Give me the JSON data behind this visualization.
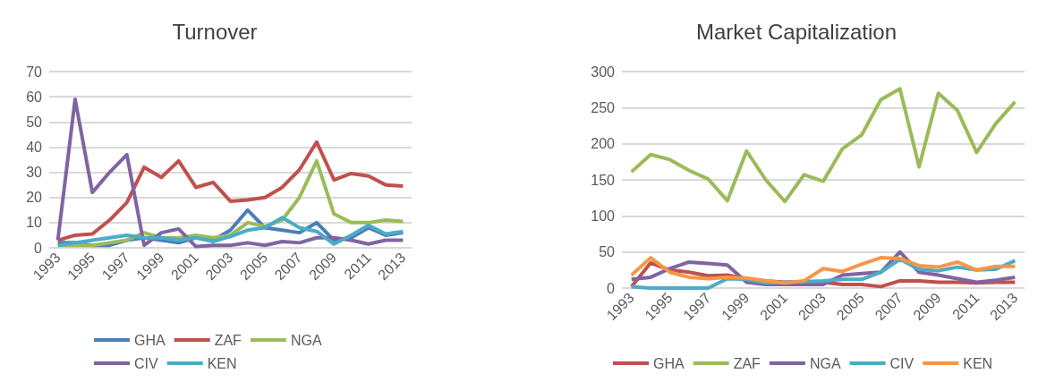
{
  "chart_data": [
    {
      "type": "line",
      "title": "Turnover",
      "categories": [
        "1993",
        null,
        "1995",
        null,
        "1997",
        null,
        "1999",
        null,
        "2001",
        null,
        "2003",
        null,
        "2005",
        null,
        "2007",
        null,
        "2009",
        null,
        "2011",
        null,
        "2013"
      ],
      "ylim": [
        0,
        70
      ],
      "yticks": [
        0,
        10,
        20,
        30,
        40,
        50,
        60,
        70
      ],
      "grid": "y",
      "legend": "bottom",
      "marker": "none",
      "series": [
        {
          "name": "GHA",
          "color": "#4a7ebb",
          "values": [
            2,
            2,
            1,
            1,
            3,
            4,
            3,
            2,
            4,
            3,
            7,
            15,
            8,
            7,
            6,
            10,
            3,
            4,
            8,
            5,
            6
          ]
        },
        {
          "name": "ZAF",
          "color": "#c0504d",
          "values": [
            3,
            5,
            5.5,
            11,
            18,
            32,
            28,
            34.5,
            24,
            26,
            18.5,
            19,
            20,
            24,
            31,
            42,
            27,
            29.5,
            28.5,
            25,
            24.5
          ]
        },
        {
          "name": "NGA",
          "color": "#9bbb59",
          "values": [
            1,
            1,
            1,
            2,
            3,
            6,
            4,
            4,
            5,
            4,
            5,
            10,
            8.5,
            11,
            20,
            34.5,
            13.5,
            10,
            10,
            11,
            10.5
          ]
        },
        {
          "name": "CIV",
          "color": "#8064a2",
          "values": [
            3,
            59,
            22,
            30,
            37,
            1,
            6,
            7.5,
            0.5,
            1,
            1,
            2,
            1,
            2.5,
            2,
            4,
            4,
            3,
            1.5,
            3,
            3
          ]
        },
        {
          "name": "KEN",
          "color": "#4bacc6",
          "values": [
            1,
            2,
            3,
            4,
            5,
            4,
            4,
            3,
            4,
            2.5,
            4.5,
            7,
            8,
            12,
            8,
            6.5,
            1.5,
            5,
            9,
            5.5,
            6.5
          ]
        }
      ]
    },
    {
      "type": "line",
      "title": "Market Capitalization",
      "categories": [
        "1993",
        null,
        "1995",
        null,
        "1997",
        null,
        "1999",
        null,
        "2001",
        null,
        "2003",
        null,
        "2005",
        null,
        "2007",
        null,
        "2009",
        null,
        "2011",
        null,
        "2013"
      ],
      "ylim": [
        0,
        300
      ],
      "yticks": [
        0,
        50,
        100,
        150,
        200,
        250,
        300
      ],
      "grid": "y",
      "legend": "bottom",
      "marker": "none",
      "series": [
        {
          "name": "GHA",
          "color": "#c0504d",
          "values": [
            2,
            35,
            25,
            22,
            17,
            18,
            13,
            10,
            8,
            8,
            8,
            5,
            5,
            2,
            10,
            10,
            8,
            8,
            7,
            8,
            8
          ]
        },
        {
          "name": "ZAF",
          "color": "#9bbb59",
          "values": [
            161,
            185,
            178,
            163,
            151,
            121,
            190,
            150,
            120,
            157,
            148,
            193,
            212,
            261,
            276,
            168,
            270,
            246,
            188,
            228,
            258
          ]
        },
        {
          "name": "NGA",
          "color": "#8064a2",
          "values": [
            12,
            15,
            27,
            36,
            34,
            32,
            8,
            5,
            5,
            5,
            5,
            18,
            20,
            22,
            50,
            22,
            18,
            13,
            8,
            11,
            15
          ]
        },
        {
          "name": "CIV",
          "color": "#4bacc6",
          "values": [
            2,
            0,
            0,
            0,
            0,
            13,
            12,
            7,
            8,
            9,
            10,
            12,
            12,
            22,
            40,
            26,
            24,
            29,
            25,
            26,
            38
          ]
        },
        {
          "name": "KEN",
          "color": "#f79646",
          "values": [
            18,
            42,
            22,
            15,
            13,
            15,
            14,
            10,
            7,
            10,
            27,
            23,
            33,
            42,
            41,
            31,
            29,
            36,
            25,
            30,
            30
          ]
        }
      ]
    }
  ]
}
